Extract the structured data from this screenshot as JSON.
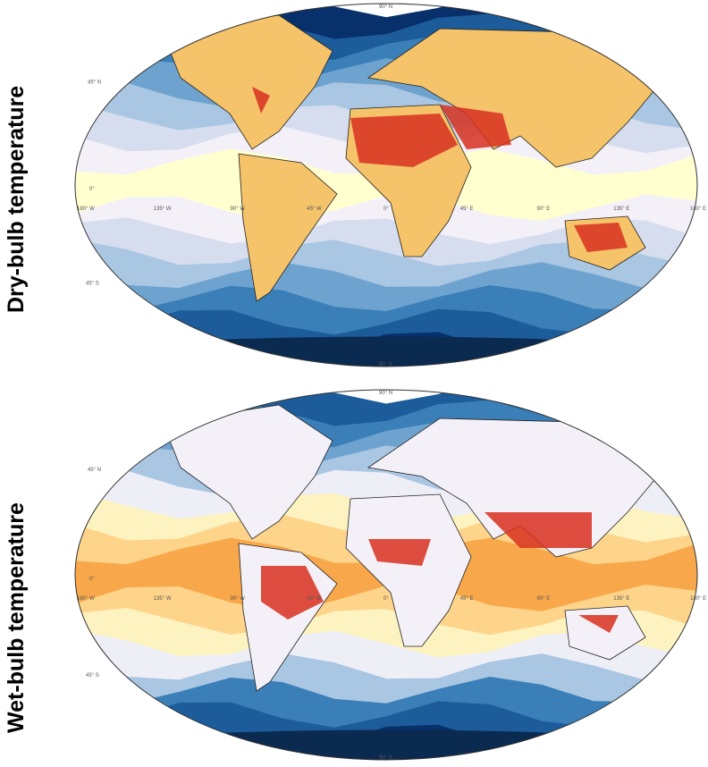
{
  "panels": [
    {
      "title": "Dry-bulb temperature",
      "colors": [
        "#08306b",
        "#1d5c9a",
        "#3a7fb8",
        "#6fa3cf",
        "#a9c6e2",
        "#d5ddee",
        "#f4f0f8",
        "#ffffd0",
        "#ffffd0",
        "#f4f0f8",
        "#d5ddee",
        "#a9c6e2",
        "#6fa3cf",
        "#3a7fb8",
        "#1d5c9a",
        "#08306b"
      ],
      "land": "#f5c36a",
      "hot": "#d7301f"
    },
    {
      "title": "Wet-bulb temperature",
      "colors": [
        "#1d5c9a",
        "#3a7fb8",
        "#6fa3cf",
        "#a9c6e2",
        "#eeeef6",
        "#fdf3c0",
        "#fdd48a",
        "#f8a84a",
        "#f8a84a",
        "#fdd48a",
        "#fdf3c0",
        "#eeeef6",
        "#a9c6e2",
        "#3a7fb8",
        "#1d5c9a",
        "#08306b"
      ],
      "land": "#f4f0f8",
      "hot": "#d7301f"
    }
  ],
  "lat_labels": {
    "n90": "90° N",
    "n45": "45° N",
    "eq": "0°",
    "s45": "45° S",
    "s90": "90° S"
  },
  "lon_labels": [
    "180° W",
    "135° W",
    "90° W",
    "45° W",
    "0°",
    "45° E",
    "90° E",
    "135° E",
    "180° E"
  ]
}
